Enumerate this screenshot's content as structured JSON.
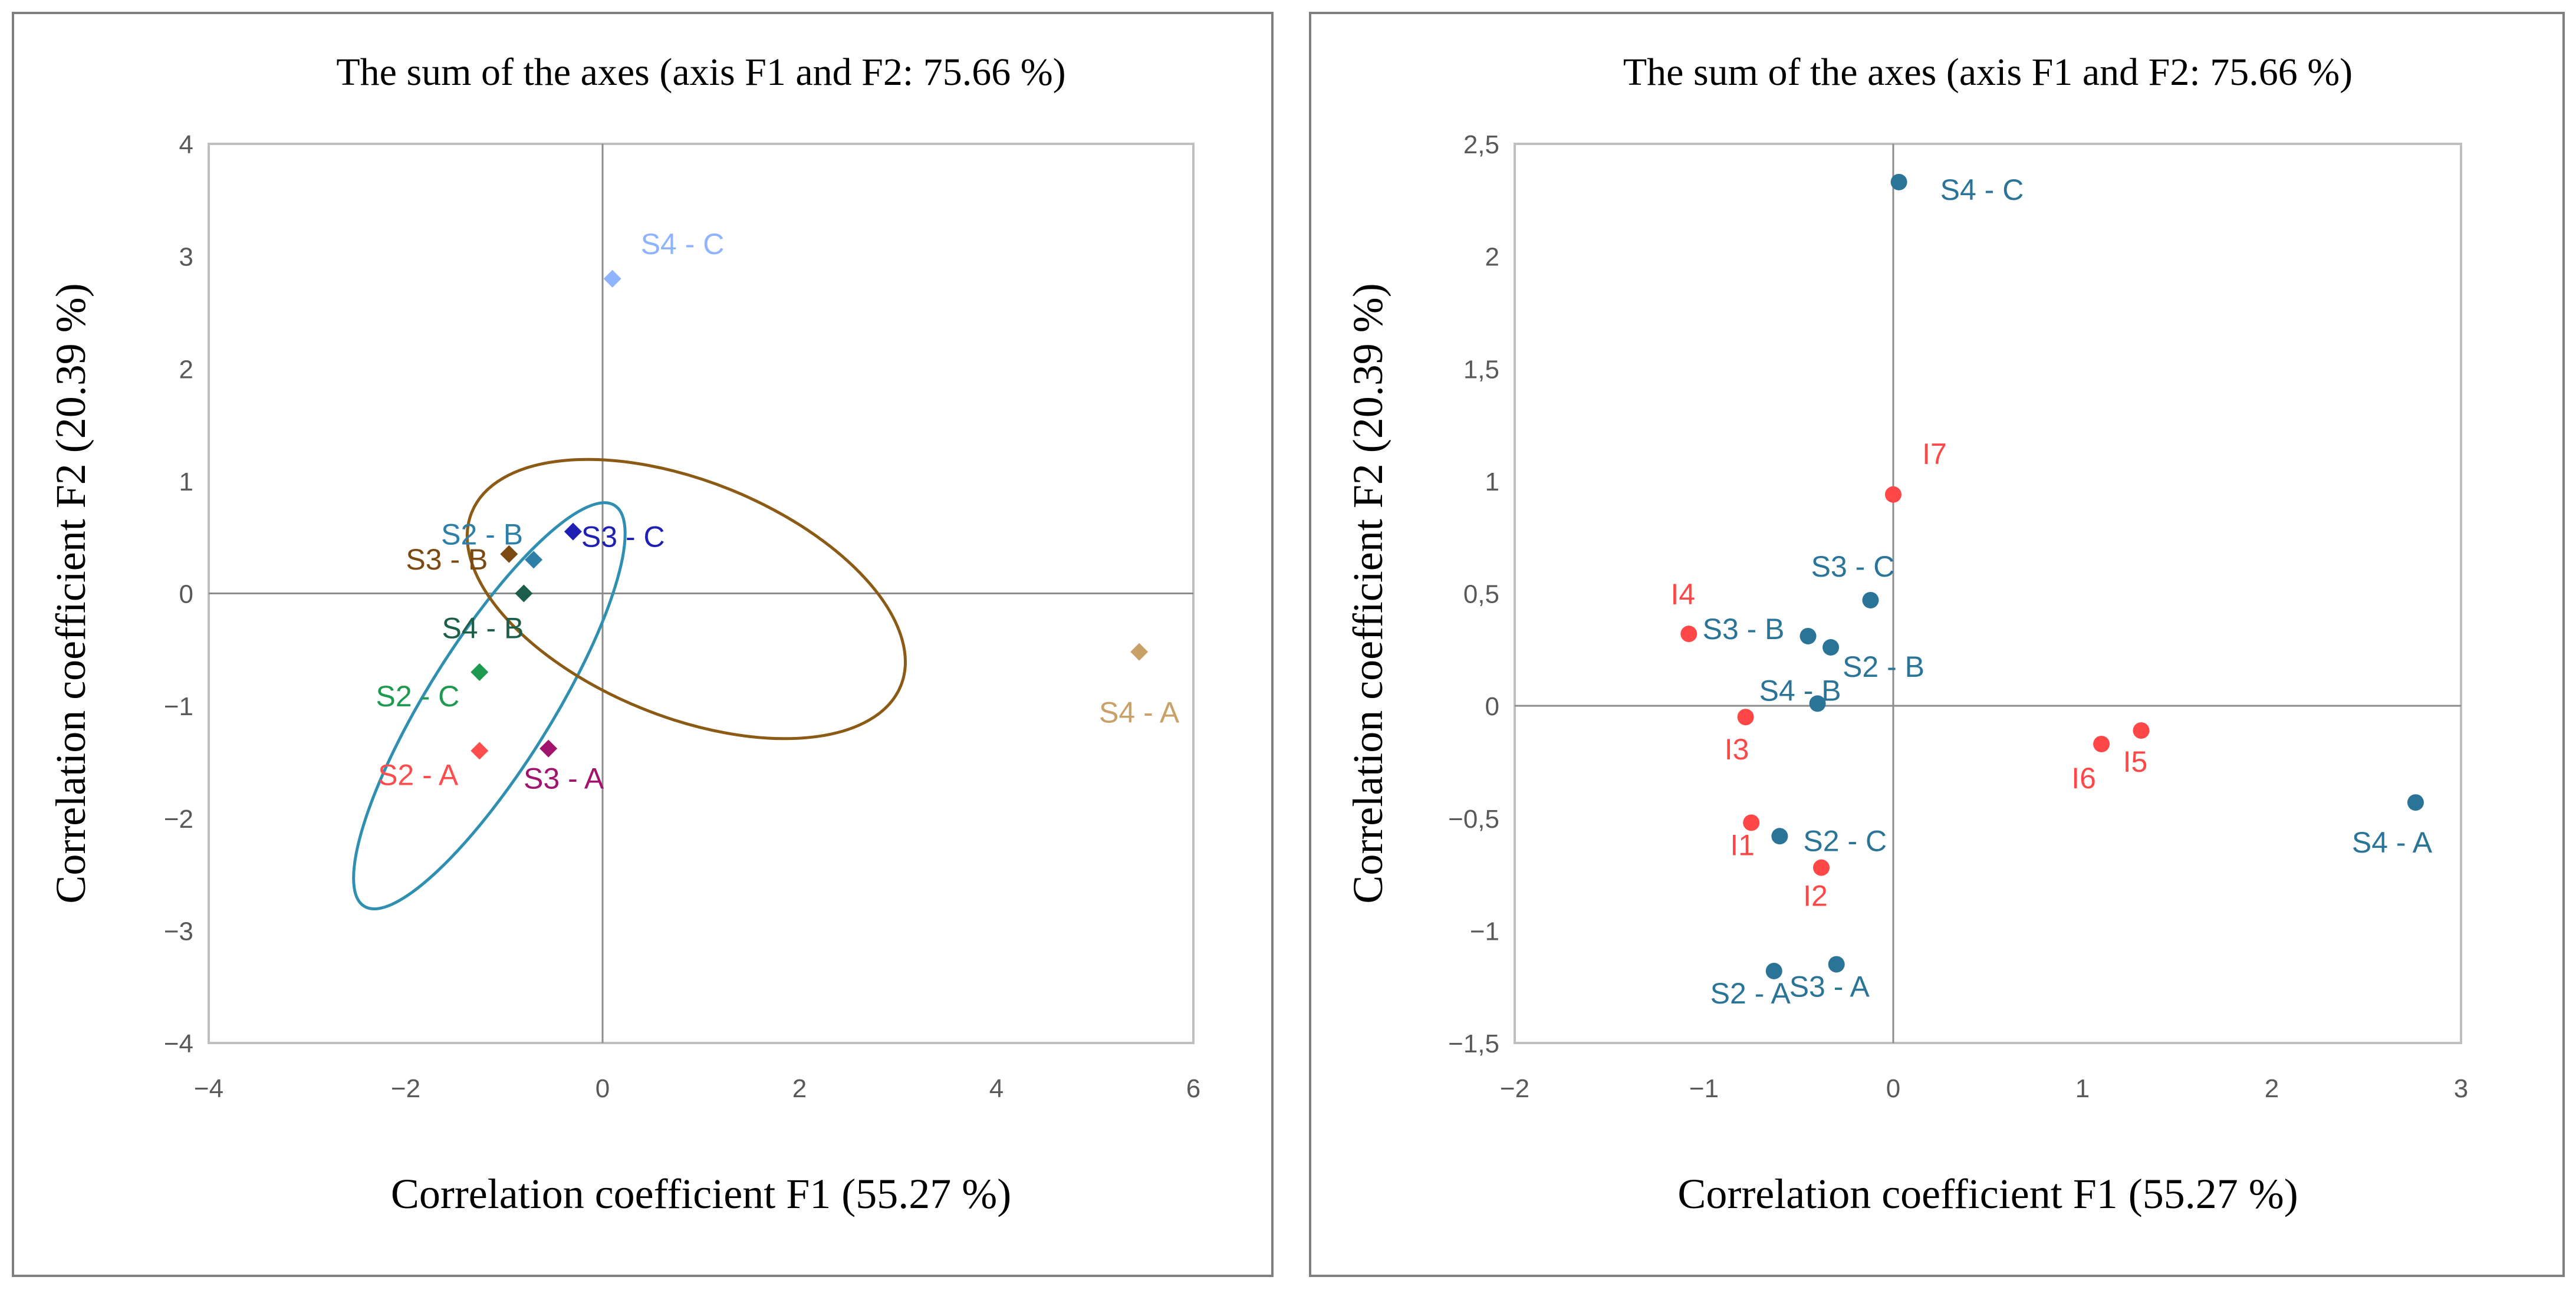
{
  "chart_data": [
    {
      "type": "scatter",
      "title": "The sum of the axes (axis F1 and  F2: 75.66 %)",
      "xlabel": "Correlation coefficient F1 (55.27 %)",
      "ylabel": "Correlation coefficient F2 (20.39 %)",
      "xlim": [
        -4,
        6
      ],
      "ylim": [
        -4,
        4
      ],
      "xticks": [
        -4,
        -2,
        0,
        2,
        4,
        6
      ],
      "yticks": [
        -4,
        -3,
        -2,
        -1,
        0,
        1,
        2,
        3,
        4
      ],
      "xtick_labels": [
        "−4",
        "−2",
        "0",
        "2",
        "4",
        "6"
      ],
      "ytick_labels": [
        "−4",
        "−3",
        "−2",
        "−1",
        "0",
        "1",
        "2",
        "3",
        "4"
      ],
      "grid": false,
      "marker": "diamond",
      "points": [
        {
          "label": "S4 - C",
          "x": 0.1,
          "y": 2.8,
          "color": "#8FB4FF"
        },
        {
          "label": "S3 - C",
          "x": -0.3,
          "y": 0.55,
          "color": "#1F1FB4"
        },
        {
          "label": "S2 - B",
          "x": -0.7,
          "y": 0.3,
          "color": "#2E7FA8"
        },
        {
          "label": "S3 - B",
          "x": -0.95,
          "y": 0.35,
          "color": "#7A4A12"
        },
        {
          "label": "S4 - B",
          "x": -0.8,
          "y": 0.0,
          "color": "#1B5E4A"
        },
        {
          "label": "S2 - C",
          "x": -1.25,
          "y": -0.7,
          "color": "#1E9A50"
        },
        {
          "label": "S2 - A",
          "x": -1.25,
          "y": -1.4,
          "color": "#FF4C4C"
        },
        {
          "label": "S3 - A",
          "x": -0.55,
          "y": -1.38,
          "color": "#A0146E"
        },
        {
          "label": "S4 - A",
          "x": 5.45,
          "y": -0.52,
          "color": "#C8A068"
        }
      ],
      "ellipses": [
        {
          "center": [
            -1.15,
            -1.0
          ],
          "color": "#2E8FB0"
        },
        {
          "center": [
            0.85,
            -0.05
          ],
          "color": "#8B5A14"
        }
      ]
    },
    {
      "type": "scatter",
      "title": "The sum of the axes  (axis F1 and F2: 75.66 %)",
      "xlabel": "Correlation coefficient F1 (55.27 %)",
      "ylabel": "Correlation coefficient F2 (20.39 %)",
      "xlim": [
        -2,
        3
      ],
      "ylim": [
        -1.5,
        2.5
      ],
      "xticks": [
        -2,
        -1,
        0,
        1,
        2,
        3
      ],
      "yticks": [
        -1.5,
        -1,
        -0.5,
        0,
        0.5,
        1,
        1.5,
        2,
        2.5
      ],
      "xtick_labels": [
        "−2",
        "−1",
        "0",
        "1",
        "2",
        "3"
      ],
      "ytick_labels": [
        "−1,5",
        "−1",
        "−0,5",
        "0",
        "0,5",
        "1",
        "1,5",
        "2",
        "2,5"
      ],
      "grid": false,
      "marker": "circle",
      "series": [
        {
          "color": "#2A7497",
          "points": [
            {
              "label": "S4 - C",
              "x": 0.03,
              "y": 2.33
            },
            {
              "label": "S3 - C",
              "x": -0.12,
              "y": 0.47
            },
            {
              "label": "S3 - B",
              "x": -0.45,
              "y": 0.31
            },
            {
              "label": "S2 - B",
              "x": -0.33,
              "y": 0.26
            },
            {
              "label": "S4 - B",
              "x": -0.4,
              "y": 0.01
            },
            {
              "label": "S2 - C",
              "x": -0.6,
              "y": -0.58
            },
            {
              "label": "S2 - A",
              "x": -0.63,
              "y": -1.18
            },
            {
              "label": "S3 - A",
              "x": -0.3,
              "y": -1.15
            },
            {
              "label": "S4 - A",
              "x": 2.76,
              "y": -0.43
            }
          ]
        },
        {
          "color": "#FF4747",
          "points": [
            {
              "label": "I7",
              "x": 0.0,
              "y": 0.94
            },
            {
              "label": "I4",
              "x": -1.08,
              "y": 0.32
            },
            {
              "label": "I3",
              "x": -0.78,
              "y": -0.05
            },
            {
              "label": "I1",
              "x": -0.75,
              "y": -0.52
            },
            {
              "label": "I2",
              "x": -0.38,
              "y": -0.72
            },
            {
              "label": "I6",
              "x": 1.1,
              "y": -0.17
            },
            {
              "label": "I5",
              "x": 1.31,
              "y": -0.11
            }
          ]
        }
      ]
    }
  ]
}
